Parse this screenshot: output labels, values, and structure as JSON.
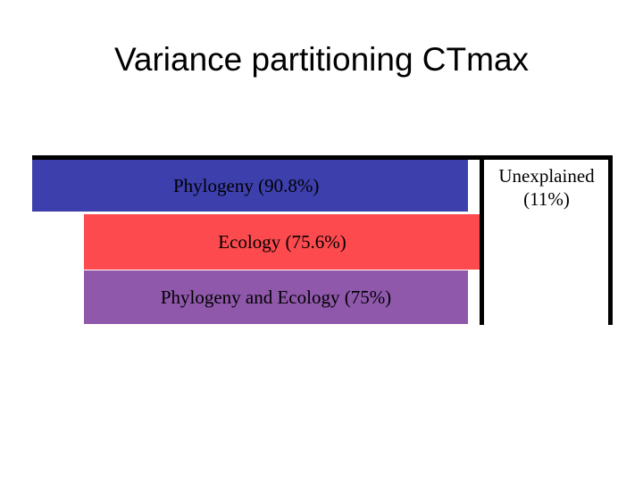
{
  "title": "Variance partitioning CTmax",
  "partitions": [
    {
      "label": "Phylogeny (90.8%)",
      "color": "#3d3fad"
    },
    {
      "label": "Ecology (75.6%)",
      "color": "#fd4a4e"
    },
    {
      "label": "Phylogeny and Ecology (75%)",
      "color": "#8f58ab"
    }
  ],
  "unexplained": {
    "line1": "Unexplained",
    "line2": "(11%)"
  }
}
